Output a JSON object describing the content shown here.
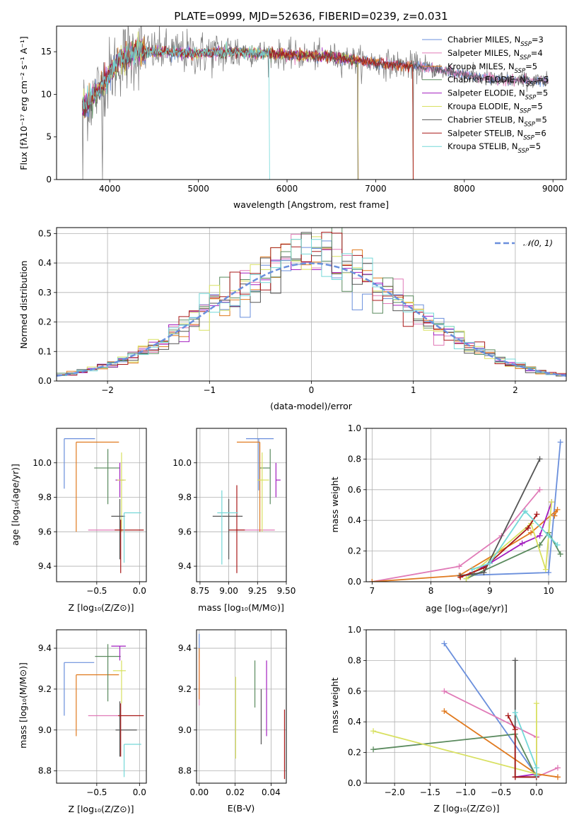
{
  "figure": {
    "title": "PLATE=0999, MJD=52636, FIBERID=0239, z=0.031"
  },
  "colors": {
    "models": [
      "#6a8fdc",
      "#e07ab7",
      "#e07a1f",
      "#5a8a5e",
      "#a21fbf",
      "#d8e060",
      "#555555",
      "#a81818",
      "#74d8d8"
    ],
    "data": "#808080",
    "grid": "#b0b0b0",
    "gauss": "#6a8fdc"
  },
  "panels": {
    "spectrum": {
      "ylabel": "Flux [fλ10⁻¹⁷ erg cm⁻² s⁻¹ A⁻¹]",
      "xlabel": "wavelength [Angstrom, rest frame]",
      "xticks": [
        "4000",
        "5000",
        "6000",
        "7000",
        "8000",
        "9000"
      ],
      "yticks": [
        "0",
        "5",
        "10",
        "15"
      ]
    },
    "hist": {
      "ylabel": "Normed distribution",
      "xlabel": "(data-model)/error",
      "xticks": [
        "−2",
        "−1",
        "0",
        "1",
        "2"
      ],
      "yticks": [
        "0.0",
        "0.1",
        "0.2",
        "0.3",
        "0.4",
        "0.5"
      ],
      "legend": "𝒩(0, 1)"
    },
    "age_Z": {
      "ylabel": "age  [log₁₀(age/yr)]",
      "xlabel": "Z [log₁₀(Z/Z⊙)]",
      "xticks": [
        "−0.5",
        "0.0"
      ],
      "yticks": [
        "9.4",
        "9.6",
        "9.8",
        "10.0"
      ]
    },
    "age_mass": {
      "xlabel": "mass [log₁₀(M/M⊙)]",
      "xticks": [
        "8.75",
        "9.00",
        "9.25",
        "9.50"
      ],
      "yticks": [
        "9.4",
        "9.6",
        "9.8",
        "10.0"
      ]
    },
    "mw_age": {
      "ylabel": "mass weight",
      "xlabel": "age  [log₁₀(age/yr)]",
      "xticks": [
        "7",
        "8",
        "9",
        "10"
      ],
      "yticks": [
        "0.0",
        "0.2",
        "0.4",
        "0.6",
        "0.8",
        "1.0"
      ]
    },
    "mass_Z": {
      "ylabel": "mass [log₁₀(M/M⊙)]",
      "xlabel": "Z [log₁₀(Z/Z⊙)]",
      "xticks": [
        "−0.5",
        "0.0"
      ],
      "yticks": [
        "8.8",
        "9.0",
        "9.2",
        "9.4"
      ]
    },
    "ebv": {
      "xlabel": "E(B-V)",
      "xticks": [
        "0.00",
        "0.02",
        "0.04"
      ],
      "yticks": [
        "8.8",
        "9.0",
        "9.2",
        "9.4"
      ]
    },
    "mw_Z": {
      "ylabel": "mass weight",
      "xlabel": "Z [log₁₀(Z/Z⊙)]",
      "xticks": [
        "−2.0",
        "−1.5",
        "−1.0",
        "−0.5",
        "0.0"
      ],
      "yticks": [
        "0.0",
        "0.2",
        "0.4",
        "0.6",
        "0.8",
        "1.0"
      ]
    }
  },
  "chart_data": [
    {
      "type": "line",
      "id": "spectrum",
      "xlim": [
        3400,
        9150
      ],
      "ylim": [
        0,
        18
      ],
      "grid": false,
      "legend_position": "top-right",
      "series_names": [
        "Chabrier MILES, N_SSP=3",
        "Salpeter MILES, N_SSP=4",
        "Kroupa MILES, N_SSP=5",
        "Chabrier ELODIE, N_SSP=5",
        "Salpeter ELODIE, N_SSP=5",
        "Kroupa ELODIE, N_SSP=5",
        "Chabrier STELIB, N_SSP=5",
        "Salpeter STELIB, N_SSP=6",
        "Kroupa STELIB, N_SSP=5"
      ],
      "legend": [
        {
          "base": "Chabrier MILES, N",
          "sub": "SSP",
          "rest": "=3"
        },
        {
          "base": "Salpeter MILES, N",
          "sub": "SSP",
          "rest": "=4"
        },
        {
          "base": "Kroupa MILES, N",
          "sub": "SSP",
          "rest": "=5"
        },
        {
          "base": "Chabrier ELODIE, N",
          "sub": "SSP",
          "rest": "=5"
        },
        {
          "base": "Salpeter ELODIE, N",
          "sub": "SSP",
          "rest": "=5"
        },
        {
          "base": "Kroupa ELODIE, N",
          "sub": "SSP",
          "rest": "=5"
        },
        {
          "base": "Chabrier STELIB, N",
          "sub": "SSP",
          "rest": "=5"
        },
        {
          "base": "Salpeter STELIB, N",
          "sub": "SSP",
          "rest": "=6"
        },
        {
          "base": "Kroupa STELIB, N",
          "sub": "SSP",
          "rest": "=5"
        }
      ],
      "data_range": [
        3690,
        8950
      ],
      "continuum": [
        [
          3690,
          8.5
        ],
        [
          3800,
          9.5
        ],
        [
          3950,
          11.5
        ],
        [
          4100,
          14.0
        ],
        [
          4300,
          15.0
        ],
        [
          4600,
          15.0
        ],
        [
          5000,
          14.8
        ],
        [
          5500,
          15.0
        ],
        [
          6000,
          14.6
        ],
        [
          6500,
          14.4
        ],
        [
          7000,
          13.7
        ],
        [
          7500,
          13.2
        ],
        [
          7900,
          12.5
        ],
        [
          8300,
          11.8
        ],
        [
          8950,
          11.5
        ]
      ],
      "model_ends": [
        8950,
        8950,
        7420,
        6800,
        6800,
        6800,
        8950,
        7420,
        5800
      ],
      "drops": [
        3695,
        3920,
        5805,
        6800,
        7420
      ]
    },
    {
      "type": "bar",
      "id": "hist",
      "xlim": [
        -2.5,
        2.5
      ],
      "ylim": [
        0,
        0.52
      ],
      "grid": true,
      "legend_position": "top-right",
      "gaussian": {
        "mean": 0,
        "sigma": 1
      },
      "bin_width": 0.1
    },
    {
      "type": "scatter",
      "id": "age_Z",
      "xlim": [
        -0.97,
        0.08
      ],
      "ylim": [
        9.31,
        10.2
      ],
      "points": [
        {
          "x": -0.88,
          "y": 10.14,
          "xerr": [
            0.0,
            0.36
          ],
          "yerr": [
            0.29,
            0.0
          ]
        },
        {
          "x": -0.6,
          "y": 9.61,
          "xerr": [
            0.0,
            0.4
          ],
          "yerr": [
            0.0,
            0.0
          ]
        },
        {
          "x": -0.74,
          "y": 10.12,
          "xerr": [
            0.0,
            0.5
          ],
          "yerr": [
            0.52,
            0.0
          ]
        },
        {
          "x": -0.37,
          "y": 9.97,
          "xerr": [
            0.16,
            0.14
          ],
          "yerr": [
            0.21,
            0.11
          ]
        },
        {
          "x": -0.23,
          "y": 9.9,
          "xerr": [
            0.05,
            0.05
          ],
          "yerr": [
            0.1,
            0.1
          ]
        },
        {
          "x": -0.21,
          "y": 9.9,
          "xerr": [
            0.05,
            0.05
          ],
          "yerr": [
            0.3,
            0.16
          ]
        },
        {
          "x": -0.23,
          "y": 9.69,
          "xerr": [
            0.1,
            0.06
          ],
          "yerr": [
            0.25,
            0.1
          ]
        },
        {
          "x": -0.22,
          "y": 9.61,
          "xerr": [
            0.07,
            0.27
          ],
          "yerr": [
            0.25,
            0.06
          ]
        },
        {
          "x": -0.18,
          "y": 9.71,
          "xerr": [
            0.0,
            0.2
          ],
          "yerr": [
            0.29,
            0.0
          ]
        }
      ]
    },
    {
      "type": "scatter",
      "id": "age_mass",
      "xlim": [
        8.72,
        9.5
      ],
      "ylim": [
        9.31,
        10.2
      ],
      "points": [
        {
          "x": 9.26,
          "y": 10.14,
          "xerr": [
            0.11,
            0.13
          ],
          "yerr": [
            0.3,
            0.0
          ]
        },
        {
          "x": 9.07,
          "y": 9.61,
          "xerr": [
            0.0,
            0.33
          ],
          "yerr": [
            0.0,
            0.0
          ]
        },
        {
          "x": 9.27,
          "y": 10.12,
          "xerr": [
            0.2,
            0.0
          ],
          "yerr": [
            0.52,
            0.0
          ]
        },
        {
          "x": 9.36,
          "y": 9.97,
          "xerr": [
            0.09,
            0.0
          ],
          "yerr": [
            0.21,
            0.11
          ]
        },
        {
          "x": 9.41,
          "y": 9.9,
          "xerr": [
            0.0,
            0.04
          ],
          "yerr": [
            0.1,
            0.1
          ]
        },
        {
          "x": 9.29,
          "y": 9.9,
          "xerr": [
            0.04,
            0.06
          ],
          "yerr": [
            0.3,
            0.16
          ]
        },
        {
          "x": 9.0,
          "y": 9.69,
          "xerr": [
            0.14,
            0.12
          ],
          "yerr": [
            0.25,
            0.1
          ]
        },
        {
          "x": 9.07,
          "y": 9.61,
          "xerr": [
            0.07,
            0.07
          ],
          "yerr": [
            0.25,
            0.26
          ]
        },
        {
          "x": 8.94,
          "y": 9.71,
          "xerr": [
            0.04,
            0.14
          ],
          "yerr": [
            0.3,
            0.13
          ]
        }
      ]
    },
    {
      "type": "line",
      "id": "mw_age",
      "xlim": [
        6.9,
        10.3
      ],
      "ylim": [
        0,
        1
      ],
      "grid": true,
      "series": [
        {
          "points": [
            [
              8.48,
              0.04
            ],
            [
              10.0,
              0.06
            ],
            [
              10.2,
              0.91
            ]
          ]
        },
        {
          "points": [
            [
              7.0,
              0.0
            ],
            [
              8.48,
              0.1
            ],
            [
              9.2,
              0.3
            ],
            [
              9.85,
              0.6
            ]
          ]
        },
        {
          "points": [
            [
              7.0,
              0.0
            ],
            [
              8.48,
              0.04
            ],
            [
              9.7,
              0.32
            ],
            [
              10.15,
              0.47
            ],
            [
              10.1,
              0.43
            ]
          ]
        },
        {
          "points": [
            [
              8.6,
              0.02
            ],
            [
              9.85,
              0.24
            ],
            [
              10.0,
              0.32
            ],
            [
              10.2,
              0.18
            ]
          ]
        },
        {
          "points": [
            [
              8.7,
              0.06
            ],
            [
              9.0,
              0.12
            ],
            [
              9.55,
              0.25
            ],
            [
              9.85,
              0.3
            ],
            [
              10.05,
              0.52
            ]
          ]
        },
        {
          "points": [
            [
              8.6,
              0.02
            ],
            [
              9.7,
              0.38
            ],
            [
              9.95,
              0.08
            ],
            [
              10.05,
              0.52
            ]
          ]
        },
        {
          "points": [
            [
              8.5,
              0.04
            ],
            [
              8.9,
              0.06
            ],
            [
              9.85,
              0.8
            ]
          ]
        },
        {
          "points": [
            [
              8.5,
              0.03
            ],
            [
              8.9,
              0.09
            ],
            [
              9.65,
              0.35
            ],
            [
              9.8,
              0.44
            ]
          ]
        },
        {
          "points": [
            [
              8.7,
              0.08
            ],
            [
              9.0,
              0.12
            ],
            [
              9.6,
              0.46
            ],
            [
              10.0,
              0.3
            ],
            [
              10.15,
              0.24
            ]
          ]
        }
      ]
    },
    {
      "type": "scatter",
      "id": "mass_Z",
      "xlim": [
        -0.97,
        0.08
      ],
      "ylim": [
        8.74,
        9.49
      ],
      "points": [
        {
          "x": -0.88,
          "y": 9.33,
          "xerr": [
            0.0,
            0.35
          ],
          "yerr": [
            0.26,
            0.0
          ]
        },
        {
          "x": -0.6,
          "y": 9.07,
          "xerr": [
            0.0,
            0.38
          ],
          "yerr": [
            0.0,
            0.0
          ]
        },
        {
          "x": -0.74,
          "y": 9.27,
          "xerr": [
            0.0,
            0.5
          ],
          "yerr": [
            0.3,
            0.0
          ]
        },
        {
          "x": -0.37,
          "y": 9.36,
          "xerr": [
            0.15,
            0.15
          ],
          "yerr": [
            0.22,
            0.06
          ]
        },
        {
          "x": -0.23,
          "y": 9.41,
          "xerr": [
            0.1,
            0.07
          ],
          "yerr": [
            0.07,
            0.0
          ]
        },
        {
          "x": -0.21,
          "y": 9.29,
          "xerr": [
            0.1,
            0.05
          ],
          "yerr": [
            0.16,
            0.05
          ]
        },
        {
          "x": -0.23,
          "y": 9.0,
          "xerr": [
            0.05,
            0.2
          ],
          "yerr": [
            0.13,
            0.14
          ]
        },
        {
          "x": -0.22,
          "y": 9.07,
          "xerr": [
            0.03,
            0.27
          ],
          "yerr": [
            0.2,
            0.06
          ]
        },
        {
          "x": -0.18,
          "y": 8.93,
          "xerr": [
            0.0,
            0.2
          ],
          "yerr": [
            0.16,
            0.0
          ]
        }
      ]
    },
    {
      "type": "scatter",
      "id": "ebv",
      "xlim": [
        -0.0015,
        0.0485
      ],
      "ylim": [
        8.74,
        9.49
      ],
      "points": [
        {
          "x": 0.0,
          "y": 9.4,
          "xerr": [
            0,
            0
          ],
          "yerr": [
            0.05,
            0.07
          ]
        },
        {
          "x": 0.0,
          "y": 9.27,
          "xerr": [
            0,
            0
          ],
          "yerr": [
            0.15,
            0.1
          ]
        },
        {
          "x": 0.0,
          "y": 9.3,
          "xerr": [
            0,
            0
          ],
          "yerr": [
            0.15,
            0.1
          ]
        },
        {
          "x": 0.031,
          "y": 9.15,
          "xerr": [
            0,
            0
          ],
          "yerr": [
            0.04,
            0.19
          ]
        },
        {
          "x": 0.0375,
          "y": 9.15,
          "xerr": [
            0,
            0
          ],
          "yerr": [
            0.18,
            0.19
          ]
        },
        {
          "x": 0.0203,
          "y": 9.06,
          "xerr": [
            0,
            0
          ],
          "yerr": [
            0.2,
            0.2
          ]
        },
        {
          "x": 0.0345,
          "y": 9.05,
          "xerr": [
            0,
            0
          ],
          "yerr": [
            0.12,
            0.15
          ]
        },
        {
          "x": 0.0475,
          "y": 8.93,
          "xerr": [
            0,
            0
          ],
          "yerr": [
            0.17,
            0.17
          ]
        }
      ]
    },
    {
      "type": "line",
      "id": "mw_Z",
      "xlim": [
        -2.4,
        0.42
      ],
      "ylim": [
        0,
        1
      ],
      "grid": true,
      "series": [
        {
          "points": [
            [
              -1.3,
              0.91
            ],
            [
              0.0,
              0.05
            ]
          ]
        },
        {
          "points": [
            [
              -1.3,
              0.6
            ],
            [
              0.0,
              0.3
            ],
            [
              0.0,
              0.04
            ],
            [
              0.3,
              0.1
            ]
          ]
        },
        {
          "points": [
            [
              -1.3,
              0.47
            ],
            [
              0.0,
              0.06
            ],
            [
              0.3,
              0.04
            ]
          ]
        },
        {
          "points": [
            [
              -2.3,
              0.22
            ],
            [
              -0.3,
              0.32
            ],
            [
              0.0,
              0.04
            ]
          ]
        },
        {
          "points": [
            [
              -0.3,
              0.04
            ],
            [
              0.0,
              0.06
            ]
          ]
        },
        {
          "points": [
            [
              -2.3,
              0.34
            ],
            [
              0.0,
              0.06
            ],
            [
              0.0,
              0.52
            ]
          ]
        },
        {
          "points": [
            [
              -0.3,
              0.8
            ],
            [
              -0.3,
              0.04
            ],
            [
              0.0,
              0.04
            ]
          ]
        },
        {
          "points": [
            [
              -0.4,
              0.44
            ],
            [
              -0.3,
              0.35
            ],
            [
              -0.3,
              0.04
            ],
            [
              0.0,
              0.04
            ]
          ]
        },
        {
          "points": [
            [
              -0.3,
              0.46
            ],
            [
              0.0,
              0.1
            ],
            [
              0.0,
              0.05
            ]
          ]
        }
      ]
    }
  ]
}
